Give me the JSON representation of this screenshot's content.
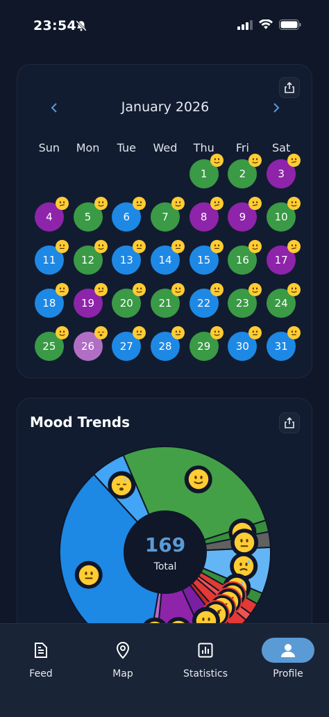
{
  "status": {
    "time": "23:54"
  },
  "calendar": {
    "month": "January 2026",
    "weekdays": [
      "Sun",
      "Mon",
      "Tue",
      "Wed",
      "Thu",
      "Fri",
      "Sat"
    ],
    "first_weekday_index": 4,
    "days": [
      {
        "d": "1",
        "c": "#3a9a45",
        "e": "slight-smile"
      },
      {
        "d": "2",
        "c": "#3a9a45",
        "e": "slight-smile"
      },
      {
        "d": "3",
        "c": "#8e24aa",
        "e": "confused"
      },
      {
        "d": "4",
        "c": "#8e24aa",
        "e": "confused"
      },
      {
        "d": "5",
        "c": "#3a9a45",
        "e": "slight-smile"
      },
      {
        "d": "6",
        "c": "#1e88e5",
        "e": "neutral"
      },
      {
        "d": "7",
        "c": "#3a9a45",
        "e": "slight-smile"
      },
      {
        "d": "8",
        "c": "#8e24aa",
        "e": "confused"
      },
      {
        "d": "9",
        "c": "#8e24aa",
        "e": "confused"
      },
      {
        "d": "10",
        "c": "#3a9a45",
        "e": "slight-smile"
      },
      {
        "d": "11",
        "c": "#1e88e5",
        "e": "neutral"
      },
      {
        "d": "12",
        "c": "#3a9a45",
        "e": "slight-smile"
      },
      {
        "d": "13",
        "c": "#1e88e5",
        "e": "neutral"
      },
      {
        "d": "14",
        "c": "#1e88e5",
        "e": "neutral"
      },
      {
        "d": "15",
        "c": "#1e88e5",
        "e": "neutral"
      },
      {
        "d": "16",
        "c": "#3a9a45",
        "e": "slight-smile"
      },
      {
        "d": "17",
        "c": "#8e24aa",
        "e": "confused"
      },
      {
        "d": "18",
        "c": "#1e88e5",
        "e": "neutral"
      },
      {
        "d": "19",
        "c": "#8e24aa",
        "e": "confused"
      },
      {
        "d": "20",
        "c": "#3a9a45",
        "e": "slight-smile"
      },
      {
        "d": "21",
        "c": "#3a9a45",
        "e": "slight-smile"
      },
      {
        "d": "22",
        "c": "#1e88e5",
        "e": "neutral"
      },
      {
        "d": "23",
        "c": "#3a9a45",
        "e": "slight-smile"
      },
      {
        "d": "24",
        "c": "#3a9a45",
        "e": "slight-smile"
      },
      {
        "d": "25",
        "c": "#3a9a45",
        "e": "slight-smile"
      },
      {
        "d": "26",
        "c": "#b06fc4",
        "e": "sleepy"
      },
      {
        "d": "27",
        "c": "#1e88e5",
        "e": "neutral"
      },
      {
        "d": "28",
        "c": "#1e88e5",
        "e": "neutral"
      },
      {
        "d": "29",
        "c": "#3a9a45",
        "e": "slight-smile"
      },
      {
        "d": "30",
        "c": "#1e88e5",
        "e": "neutral"
      },
      {
        "d": "31",
        "c": "#1e88e5",
        "e": "neutral"
      }
    ]
  },
  "mood_trends": {
    "title": "Mood Trends",
    "total_value": "169",
    "total_label": "Total"
  },
  "chart_data": {
    "type": "pie",
    "title": "Mood Trends",
    "center_label": "169 Total",
    "total": 169,
    "slices": [
      {
        "mood": "slight-smile",
        "value": 45,
        "color": "#43a047"
      },
      {
        "mood": "relieved",
        "value": 3,
        "color": "#388e3c"
      },
      {
        "mood": "unamused",
        "value": 4,
        "color": "#616161"
      },
      {
        "mood": "sad-sweat",
        "value": 12,
        "color": "#64b5f6"
      },
      {
        "mood": "sad-sweat-2",
        "value": 3,
        "color": "#388e3c"
      },
      {
        "mood": "angry",
        "value": 3,
        "color": "#e53935"
      },
      {
        "mood": "frustrated",
        "value": 2,
        "color": "#ef5350"
      },
      {
        "mood": "steam",
        "value": 4,
        "color": "#e53935"
      },
      {
        "mood": "steam-2",
        "value": 2,
        "color": "#c62828"
      },
      {
        "mood": "neutral-2",
        "value": 6,
        "color": "#7b1fa2"
      },
      {
        "mood": "confused",
        "value": 14,
        "color": "#8e24aa"
      },
      {
        "mood": "smirk",
        "value": 2,
        "color": "#ba68c8"
      },
      {
        "mood": "neutral",
        "value": 60,
        "color": "#1e88e5"
      },
      {
        "mood": "sleepy",
        "value": 9,
        "color": "#42a5f5"
      }
    ]
  },
  "nav": {
    "items": [
      {
        "label": "Feed",
        "icon": "feed-icon"
      },
      {
        "label": "Map",
        "icon": "map-pin-icon"
      },
      {
        "label": "Statistics",
        "icon": "statistics-icon"
      },
      {
        "label": "Profile",
        "icon": "profile-icon"
      }
    ],
    "active_index": 3
  }
}
